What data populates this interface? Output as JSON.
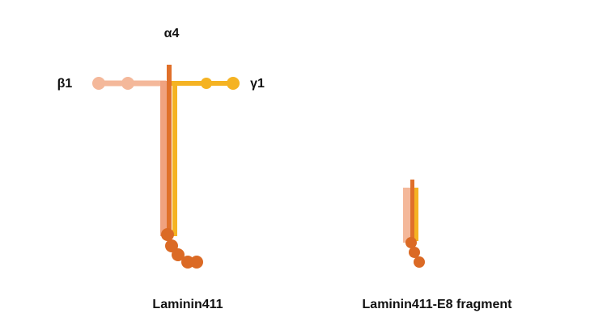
{
  "labels": {
    "alpha": "α4",
    "beta": "β1",
    "gamma": "γ1"
  },
  "captions": [
    "Laminin411",
    "Laminin411-E8 fragment"
  ]
}
